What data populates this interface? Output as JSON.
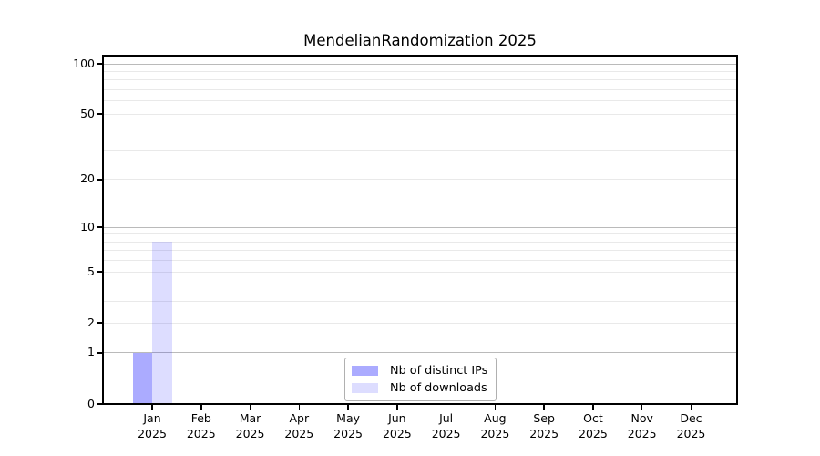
{
  "title": "MendelianRandomization 2025",
  "chart_data": {
    "type": "bar",
    "title": "MendelianRandomization 2025",
    "categories": [
      "Jan 2025",
      "Feb 2025",
      "Mar 2025",
      "Apr 2025",
      "May 2025",
      "Jun 2025",
      "Jul 2025",
      "Aug 2025",
      "Sep 2025",
      "Oct 2025",
      "Nov 2025",
      "Dec 2025"
    ],
    "month_labels": [
      "Jan",
      "Feb",
      "Mar",
      "Apr",
      "May",
      "Jun",
      "Jul",
      "Aug",
      "Sep",
      "Oct",
      "Nov",
      "Dec"
    ],
    "year_label": "2025",
    "series": [
      {
        "name": "Nb of distinct IPs",
        "color": "rgba(0,0,255,0.33)",
        "values": [
          1,
          0,
          0,
          0,
          0,
          0,
          0,
          0,
          0,
          0,
          0,
          0
        ]
      },
      {
        "name": "Nb of downloads",
        "color": "rgba(0,0,255,0.135)",
        "values": [
          8,
          0,
          0,
          0,
          0,
          0,
          0,
          0,
          0,
          0,
          0,
          0
        ]
      }
    ],
    "xlabel": "",
    "ylabel": "",
    "yscale": "log10(1+x)",
    "ylim": [
      0,
      112
    ],
    "yticks": [
      0,
      1,
      2,
      5,
      10,
      20,
      50,
      100
    ],
    "minor_gridlines": [
      3,
      4,
      6,
      7,
      8,
      9,
      30,
      40,
      60,
      70,
      80,
      90
    ],
    "decade_gridlines": [
      1,
      10,
      100
    ],
    "grid": true,
    "legend_position": "lower center"
  },
  "colors": {
    "bar_distinct_ips_hex": "#aaaaf4",
    "bar_downloads_hex": "#dcdcfa",
    "decade_gridline": "#bababa",
    "minor_gridline": "#e9e9e9",
    "axis": "#000000",
    "legend_border": "#b0b0b0",
    "background": "#ffffff"
  }
}
